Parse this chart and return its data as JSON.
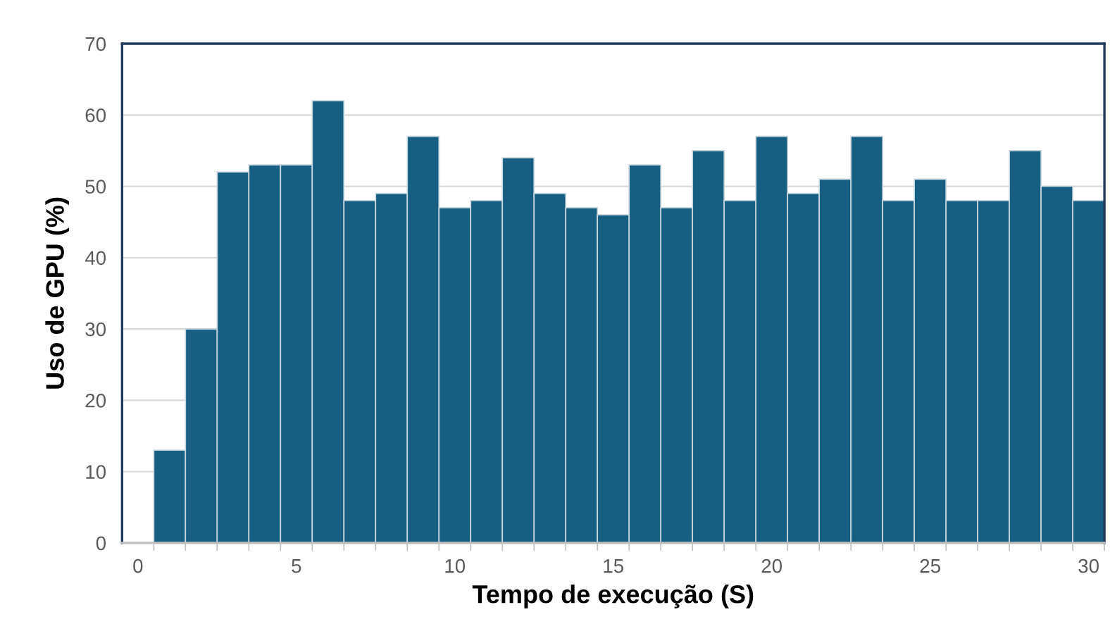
{
  "chart_data": {
    "type": "histogram",
    "xlabel": "Tempo de execução (S)",
    "ylabel": "Uso de GPU (%)",
    "bins": [
      0.5,
      1.5,
      2.5,
      3.5,
      4.5,
      5.5,
      6.5,
      7.5,
      8.5,
      9.5,
      10.5,
      11.5,
      12.5,
      13.5,
      14.5,
      15.5,
      16.5,
      17.5,
      18.5,
      19.5,
      20.5,
      21.5,
      22.5,
      23.5,
      24.5,
      25.5,
      26.5,
      27.5,
      28.5,
      29.5,
      30.5
    ],
    "values": [
      13,
      30,
      52,
      53,
      53,
      62,
      48,
      49,
      57,
      47,
      48,
      54,
      49,
      47,
      46,
      53,
      47,
      55,
      48,
      57,
      49,
      51,
      57,
      48,
      51,
      48,
      48,
      55,
      50,
      48
    ],
    "color": "#175f82",
    "xlim": [
      -0.5,
      30.5
    ],
    "ylim": [
      0,
      70
    ],
    "xticks": [
      0,
      5,
      10,
      15,
      20,
      25,
      30
    ],
    "yticks": [
      0,
      10,
      20,
      30,
      40,
      50,
      60,
      70
    ],
    "grid": "y"
  }
}
